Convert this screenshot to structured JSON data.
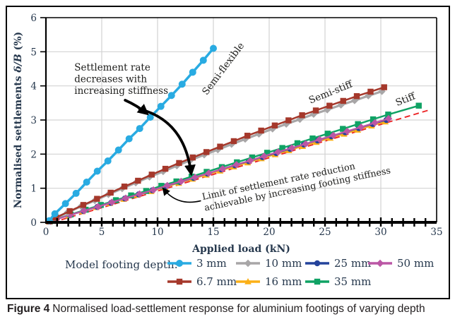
{
  "figure": {
    "caption_label": "Figure 4",
    "caption_text": "Normalised load-settlement response for aluminium footings of varying depth"
  },
  "legend": {
    "title": "Model footing depth:"
  },
  "chart_data": {
    "type": "line",
    "title": "",
    "xlabel": "Applied load (kN)",
    "ylabel": "Normalised settlements δ/B (%)",
    "xlim": [
      0,
      35
    ],
    "ylim": [
      0,
      6
    ],
    "xticks": [
      0,
      5,
      10,
      15,
      20,
      25,
      30,
      35
    ],
    "yticks": [
      0,
      1,
      2,
      3,
      4,
      5,
      6
    ],
    "x_minor_tick_step": 1,
    "grid": true,
    "grid_color": "#d3d3d3",
    "legend_position": "bottom",
    "series": [
      {
        "name": "3 mm",
        "color": "#29abe2",
        "marker": "circle",
        "stiffness_class": "Semi-flexible",
        "points": [
          [
            0.3,
            0.05
          ],
          [
            0.8,
            0.25
          ],
          [
            1.75,
            0.55
          ],
          [
            2.7,
            0.85
          ],
          [
            3.65,
            1.18
          ],
          [
            4.6,
            1.5
          ],
          [
            5.55,
            1.8
          ],
          [
            6.5,
            2.12
          ],
          [
            7.45,
            2.45
          ],
          [
            8.4,
            2.75
          ],
          [
            9.35,
            3.08
          ],
          [
            10.3,
            3.4
          ],
          [
            11.25,
            3.72
          ],
          [
            12.2,
            4.05
          ],
          [
            13.15,
            4.4
          ],
          [
            14.1,
            4.75
          ],
          [
            15,
            5.1
          ]
        ]
      },
      {
        "name": "6.7 mm",
        "color": "#a5382b",
        "marker": "square",
        "stiffness_class": "Semi-stiff",
        "points": [
          [
            0.3,
            0.03
          ],
          [
            0.9,
            0.14
          ],
          [
            2.13,
            0.33
          ],
          [
            3.35,
            0.51
          ],
          [
            4.58,
            0.69
          ],
          [
            5.8,
            0.87
          ],
          [
            7.03,
            1.05
          ],
          [
            8.25,
            1.22
          ],
          [
            9.48,
            1.4
          ],
          [
            10.7,
            1.57
          ],
          [
            11.93,
            1.74
          ],
          [
            13.15,
            1.9
          ],
          [
            14.38,
            2.06
          ],
          [
            15.6,
            2.22
          ],
          [
            16.83,
            2.38
          ],
          [
            18.05,
            2.54
          ],
          [
            19.28,
            2.69
          ],
          [
            20.5,
            2.84
          ],
          [
            21.73,
            2.99
          ],
          [
            22.95,
            3.14
          ],
          [
            24.18,
            3.28
          ],
          [
            25.4,
            3.42
          ],
          [
            26.63,
            3.56
          ],
          [
            27.85,
            3.7
          ],
          [
            29.08,
            3.83
          ],
          [
            30.3,
            3.96
          ]
        ]
      },
      {
        "name": "10 mm",
        "color": "#a8a6a7",
        "marker": "diamond",
        "stiffness_class": "Semi-stiff",
        "points": [
          [
            0.25,
            0.03
          ],
          [
            0.7,
            0.11
          ],
          [
            1.93,
            0.29
          ],
          [
            3.15,
            0.47
          ],
          [
            4.38,
            0.64
          ],
          [
            5.6,
            0.82
          ],
          [
            6.83,
            0.99
          ],
          [
            8.05,
            1.16
          ],
          [
            9.28,
            1.33
          ],
          [
            10.5,
            1.49
          ],
          [
            11.73,
            1.66
          ],
          [
            12.95,
            1.82
          ],
          [
            14.18,
            1.98
          ],
          [
            15.4,
            2.13
          ],
          [
            16.63,
            2.29
          ],
          [
            17.85,
            2.44
          ],
          [
            19.08,
            2.59
          ],
          [
            20.3,
            2.74
          ],
          [
            21.53,
            2.88
          ],
          [
            22.75,
            3.02
          ],
          [
            23.98,
            3.17
          ],
          [
            25.2,
            3.3
          ],
          [
            26.43,
            3.44
          ],
          [
            27.65,
            3.57
          ],
          [
            28.88,
            3.71
          ],
          [
            30.1,
            3.84
          ]
        ]
      },
      {
        "name": "16 mm",
        "color": "#fbb017",
        "marker": "triangle",
        "stiffness_class": "Stiff",
        "points": [
          [
            0.3,
            0.02
          ],
          [
            0.8,
            0.08
          ],
          [
            2.03,
            0.2
          ],
          [
            3.27,
            0.32
          ],
          [
            4.5,
            0.44
          ],
          [
            5.73,
            0.56
          ],
          [
            6.97,
            0.68
          ],
          [
            8.2,
            0.8
          ],
          [
            9.43,
            0.91
          ],
          [
            10.67,
            1.03
          ],
          [
            11.9,
            1.15
          ],
          [
            13.13,
            1.27
          ],
          [
            14.37,
            1.39
          ],
          [
            15.6,
            1.51
          ],
          [
            16.83,
            1.63
          ],
          [
            18.07,
            1.75
          ],
          [
            19.3,
            1.87
          ],
          [
            20.53,
            1.99
          ],
          [
            21.77,
            2.11
          ],
          [
            23,
            2.23
          ],
          [
            24.23,
            2.35
          ],
          [
            25.47,
            2.47
          ],
          [
            26.7,
            2.59
          ],
          [
            27.93,
            2.71
          ],
          [
            29.17,
            2.83
          ],
          [
            30.4,
            2.95
          ]
        ]
      },
      {
        "name": "25 mm",
        "color": "#24439b",
        "marker": "circle",
        "stiffness_class": "Stiff",
        "points": [
          [
            0.35,
            0.03
          ],
          [
            0.9,
            0.09
          ],
          [
            2.13,
            0.21
          ],
          [
            3.37,
            0.33
          ],
          [
            4.6,
            0.45
          ],
          [
            5.83,
            0.57
          ],
          [
            7.07,
            0.7
          ],
          [
            8.3,
            0.82
          ],
          [
            9.53,
            0.94
          ],
          [
            10.77,
            1.06
          ],
          [
            12,
            1.18
          ],
          [
            13.23,
            1.3
          ],
          [
            14.47,
            1.43
          ],
          [
            15.7,
            1.55
          ],
          [
            16.93,
            1.67
          ],
          [
            18.17,
            1.79
          ],
          [
            19.4,
            1.91
          ],
          [
            20.63,
            2.03
          ],
          [
            21.87,
            2.15
          ],
          [
            23.1,
            2.28
          ],
          [
            24.33,
            2.4
          ],
          [
            25.57,
            2.52
          ],
          [
            26.8,
            2.64
          ],
          [
            28.03,
            2.76
          ],
          [
            29.27,
            2.88
          ],
          [
            30.5,
            3
          ]
        ]
      },
      {
        "name": "35 mm",
        "color": "#0fa264",
        "marker": "square",
        "stiffness_class": "Stiff",
        "points": [
          [
            0.35,
            0.03
          ],
          [
            0.85,
            0.09
          ],
          [
            2.21,
            0.23
          ],
          [
            3.56,
            0.37
          ],
          [
            4.92,
            0.51
          ],
          [
            6.27,
            0.65
          ],
          [
            7.63,
            0.79
          ],
          [
            8.98,
            0.92
          ],
          [
            10.34,
            1.07
          ],
          [
            11.69,
            1.2
          ],
          [
            13.05,
            1.34
          ],
          [
            14.4,
            1.48
          ],
          [
            15.76,
            1.62
          ],
          [
            17.11,
            1.76
          ],
          [
            18.47,
            1.9
          ],
          [
            19.82,
            2.04
          ],
          [
            21.18,
            2.18
          ],
          [
            22.53,
            2.32
          ],
          [
            23.89,
            2.46
          ],
          [
            25.24,
            2.6
          ],
          [
            26.6,
            2.74
          ],
          [
            27.95,
            2.88
          ],
          [
            29.31,
            3.02
          ],
          [
            30.66,
            3.16
          ],
          [
            33.4,
            3.42
          ]
        ]
      },
      {
        "name": "50 mm",
        "color": "#bb57a5",
        "marker": "diamond",
        "stiffness_class": "Stiff",
        "points": [
          [
            0.4,
            0.03
          ],
          [
            0.95,
            0.09
          ],
          [
            2.19,
            0.22
          ],
          [
            3.43,
            0.34
          ],
          [
            4.67,
            0.46
          ],
          [
            5.91,
            0.59
          ],
          [
            7.15,
            0.71
          ],
          [
            8.39,
            0.83
          ],
          [
            9.63,
            0.95
          ],
          [
            10.87,
            1.08
          ],
          [
            12.11,
            1.2
          ],
          [
            13.35,
            1.32
          ],
          [
            14.59,
            1.44
          ],
          [
            15.83,
            1.57
          ],
          [
            17.07,
            1.69
          ],
          [
            18.31,
            1.81
          ],
          [
            19.55,
            1.94
          ],
          [
            20.79,
            2.06
          ],
          [
            22.03,
            2.18
          ],
          [
            23.27,
            2.3
          ],
          [
            24.51,
            2.43
          ],
          [
            25.75,
            2.55
          ],
          [
            26.99,
            2.67
          ],
          [
            28.23,
            2.79
          ],
          [
            29.47,
            2.92
          ],
          [
            30.7,
            3.04
          ]
        ]
      }
    ],
    "reference_line": {
      "name": "limit-line",
      "style": "dashed",
      "color": "#ec2426",
      "points": [
        [
          0.6,
          0
        ],
        [
          34.2,
          3.28
        ]
      ]
    },
    "annotations": [
      {
        "id": "settlement-note",
        "text": "Settlement rate\ndecreases with\nincreasing stiffness",
        "x": 2.55,
        "y": 4.45,
        "rotate": 0,
        "align": "start",
        "size": 13.5,
        "lh": 16.5
      },
      {
        "id": "semi-flexible-label",
        "text": "Semi-flexible",
        "x": 16.1,
        "y": 4.45,
        "rotate": -53,
        "align": "middle",
        "size": 13.5,
        "lh": 16
      },
      {
        "id": "semi-stiff-label",
        "text": "Semi-stiff",
        "x": 25.6,
        "y": 3.73,
        "rotate": -22,
        "align": "middle",
        "size": 13.5,
        "lh": 16
      },
      {
        "id": "stiff-label",
        "text": "Stiff",
        "x": 32.3,
        "y": 3.52,
        "rotate": -22,
        "align": "middle",
        "size": 13.5,
        "lh": 16
      },
      {
        "id": "limit-note",
        "text": "Limit of settlement rate reduction\nachievable by increasing footing stiffness",
        "x": 14.05,
        "y": 0.66,
        "rotate": -11.5,
        "align": "start",
        "size": 12.8,
        "lh": 16
      }
    ],
    "arrows": [
      {
        "id": "stiffness-arrow-upper",
        "from": [
          7.1,
          3.58
        ],
        "ctrl": [
          8.2,
          3.42
        ],
        "to": [
          9.0,
          3.2
        ],
        "width": 3.8,
        "head": "large"
      },
      {
        "id": "stiffness-arrow-lower",
        "from": [
          8.4,
          3.32
        ],
        "ctrl": [
          12.4,
          2.98
        ],
        "to": [
          13.0,
          1.45
        ],
        "width": 3.8,
        "head": "large"
      },
      {
        "id": "limit-pointer-arrow",
        "from": [
          13.85,
          0.63
        ],
        "ctrl": [
          11.8,
          0.47
        ],
        "to": [
          10.55,
          0.97
        ],
        "width": 1.6,
        "head": "small"
      }
    ]
  }
}
